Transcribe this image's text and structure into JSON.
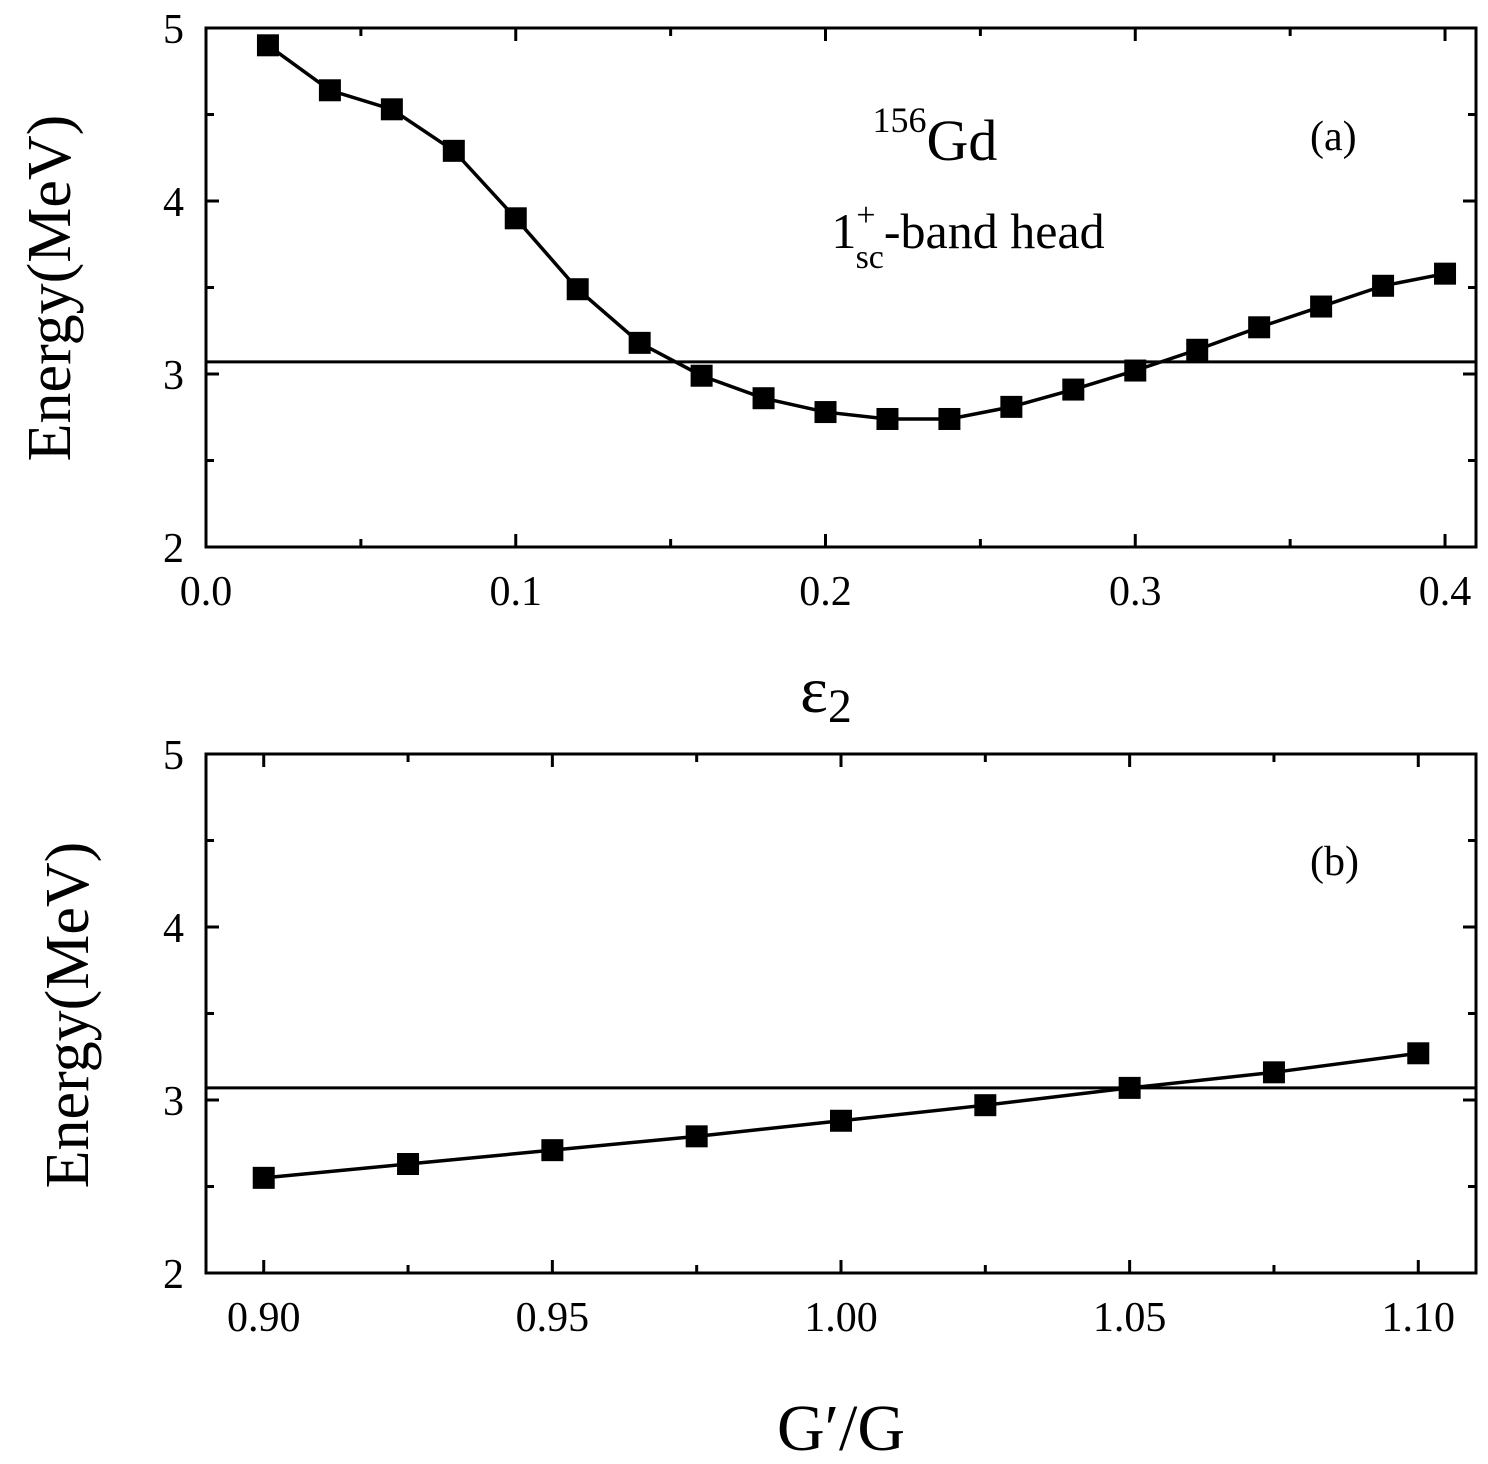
{
  "chart_data": [
    {
      "type": "line",
      "panel_label": "(a)",
      "xlabel": "ε",
      "xlabel_sub": "2",
      "ylabel": "Energy(MeV)",
      "xlim": [
        0.0,
        0.41
      ],
      "ylim": [
        2,
        5
      ],
      "xticks": [
        0.0,
        0.1,
        0.2,
        0.3,
        0.4
      ],
      "xtick_labels": [
        "0.0",
        "0.1",
        "0.2",
        "0.3",
        "0.4"
      ],
      "yticks": [
        2,
        3,
        4,
        5
      ],
      "ytick_labels": [
        "2",
        "3",
        "4",
        "5"
      ],
      "grid": false,
      "reference_line_y": 3.07,
      "annotation": {
        "nucleus_mass": "156",
        "nucleus_symbol": "Gd",
        "state_main": "1",
        "state_sup": "+",
        "state_sub": "sc",
        "state_rest": "-band head"
      },
      "series": [
        {
          "marker": "square",
          "color": "#000000",
          "x": [
            0.02,
            0.04,
            0.06,
            0.08,
            0.1,
            0.12,
            0.14,
            0.16,
            0.18,
            0.2,
            0.22,
            0.24,
            0.26,
            0.28,
            0.3,
            0.32,
            0.34,
            0.36,
            0.38,
            0.4
          ],
          "y": [
            4.9,
            4.64,
            4.53,
            4.29,
            3.9,
            3.49,
            3.18,
            2.99,
            2.86,
            2.78,
            2.74,
            2.74,
            2.81,
            2.91,
            3.02,
            3.14,
            3.27,
            3.39,
            3.51,
            3.58
          ]
        }
      ]
    },
    {
      "type": "line",
      "panel_label": "(b)",
      "xlabel": "G′/G",
      "ylabel": "Energy(MeV)",
      "xlim": [
        0.89,
        1.11
      ],
      "ylim": [
        2,
        5
      ],
      "xticks": [
        0.9,
        0.925,
        0.95,
        0.975,
        1.0,
        1.025,
        1.05,
        1.075,
        1.1
      ],
      "xtick_labels": [
        "0.90",
        "",
        "0.95",
        "",
        "1.00",
        "",
        "1.05",
        "",
        "1.10"
      ],
      "yticks": [
        2,
        3,
        4,
        5
      ],
      "ytick_labels": [
        "2",
        "3",
        "4",
        "5"
      ],
      "grid": false,
      "reference_line_y": 3.07,
      "series": [
        {
          "marker": "square",
          "color": "#000000",
          "x": [
            0.9,
            0.925,
            0.95,
            0.975,
            1.0,
            1.025,
            1.05,
            1.075,
            1.1
          ],
          "y": [
            2.55,
            2.63,
            2.71,
            2.79,
            2.88,
            2.97,
            3.07,
            3.16,
            3.27
          ]
        }
      ]
    }
  ]
}
